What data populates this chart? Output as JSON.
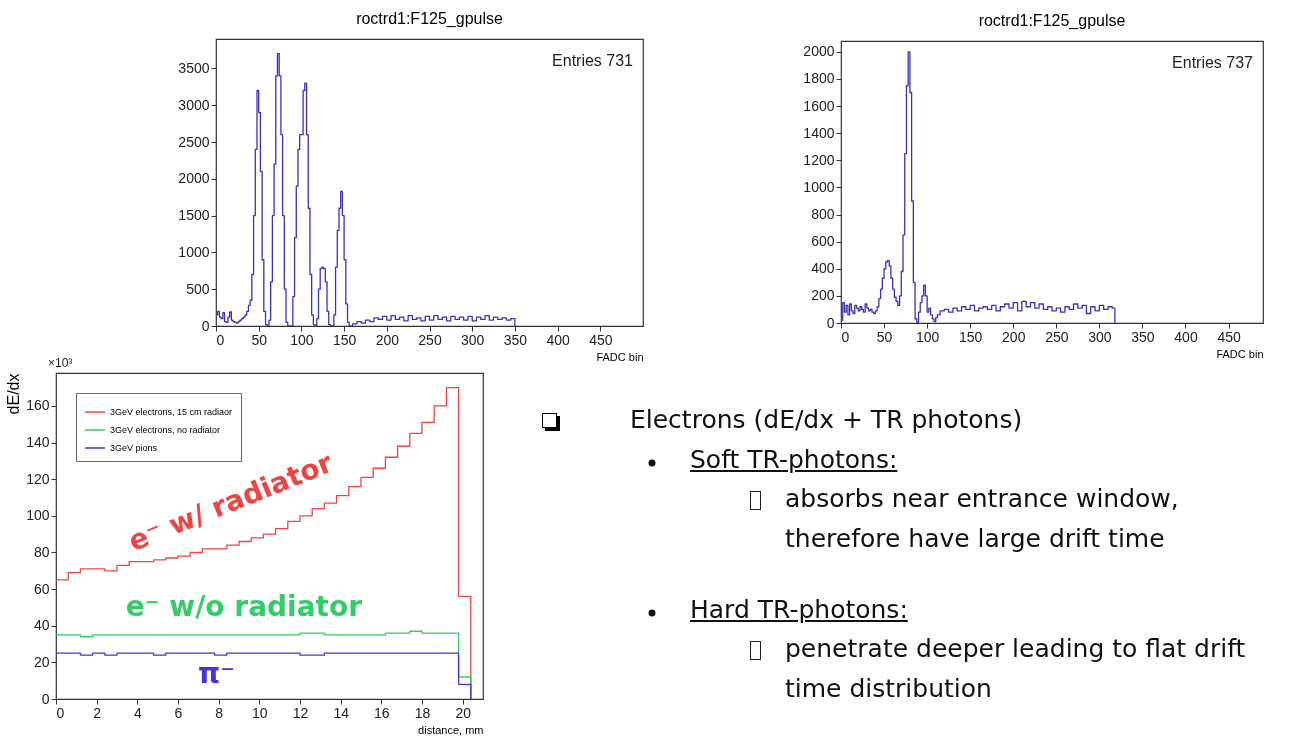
{
  "chart_data": [
    {
      "type": "step",
      "title": "roctrd1:F125_gpulse",
      "xlabel": "FADC bin",
      "annotations": [
        "Entries   731"
      ],
      "xlim": [
        0,
        500
      ],
      "ylim": [
        0,
        3900
      ],
      "xticks": [
        0,
        50,
        100,
        150,
        200,
        250,
        300,
        350,
        400,
        450
      ],
      "yticks": [
        0,
        500,
        1000,
        1500,
        2000,
        2500,
        3000,
        3500
      ],
      "x": [
        0,
        2,
        4,
        6,
        8,
        10,
        12,
        14,
        16,
        18,
        20,
        22,
        24,
        26,
        28,
        30,
        32,
        34,
        36,
        38,
        40,
        42,
        44,
        46,
        48,
        50,
        52,
        54,
        56,
        58,
        60,
        62,
        64,
        66,
        68,
        70,
        72,
        74,
        76,
        78,
        80,
        82,
        84,
        86,
        88,
        90,
        92,
        94,
        96,
        98,
        100,
        102,
        104,
        106,
        108,
        110,
        112,
        114,
        116,
        118,
        120,
        122,
        124,
        126,
        128,
        130,
        132,
        134,
        136,
        138,
        140,
        142,
        144,
        146,
        148,
        150,
        152,
        154,
        156,
        160,
        165,
        170,
        175,
        180,
        185,
        190,
        195,
        200,
        205,
        210,
        215,
        220,
        225,
        230,
        235,
        240,
        245,
        250,
        255,
        260,
        265,
        270,
        275,
        280,
        285,
        290,
        295,
        300,
        305,
        310,
        315,
        320,
        325,
        330,
        335,
        340,
        345,
        350
      ],
      "series": [
        {
          "color": "#3a33b8",
          "values": [
            150,
            200,
            120,
            100,
            180,
            60,
            50,
            120,
            190,
            80,
            60,
            50,
            40,
            60,
            80,
            100,
            120,
            150,
            200,
            280,
            350,
            700,
            1500,
            2400,
            3200,
            2900,
            2100,
            900,
            200,
            20,
            0,
            80,
            600,
            1500,
            2200,
            3400,
            3700,
            3400,
            2600,
            1500,
            500,
            50,
            0,
            0,
            0,
            400,
            1200,
            1900,
            2400,
            2600,
            2600,
            3200,
            3300,
            2600,
            1600,
            700,
            150,
            20,
            0,
            100,
            500,
            780,
            800,
            780,
            600,
            200,
            20,
            0,
            0,
            150,
            800,
            1300,
            1600,
            1830,
            1500,
            900,
            300,
            50,
            0,
            30,
            60,
            40,
            80,
            60,
            110,
            90,
            130,
            80,
            140,
            90,
            120,
            70,
            140,
            90,
            110,
            70,
            130,
            80,
            140,
            90,
            120,
            70,
            130,
            90,
            120,
            80,
            130,
            70,
            120,
            90,
            140,
            80,
            120,
            90,
            110,
            80,
            100,
            0
          ]
        }
      ]
    },
    {
      "type": "step",
      "title": "roctrd1:F125_gpulse",
      "xlabel": "FADC bin",
      "annotations": [
        "Entries   737"
      ],
      "xlim": [
        0,
        490
      ],
      "ylim": [
        0,
        2080
      ],
      "xticks": [
        0,
        50,
        100,
        150,
        200,
        250,
        300,
        350,
        400,
        450
      ],
      "yticks": [
        0,
        200,
        400,
        600,
        800,
        1000,
        1200,
        1400,
        1600,
        1800,
        2000
      ],
      "x": [
        0,
        2,
        4,
        6,
        8,
        10,
        12,
        14,
        16,
        18,
        20,
        22,
        24,
        26,
        28,
        30,
        32,
        34,
        36,
        38,
        40,
        42,
        44,
        46,
        48,
        50,
        52,
        54,
        56,
        58,
        60,
        62,
        64,
        66,
        68,
        70,
        72,
        74,
        76,
        78,
        80,
        82,
        84,
        86,
        88,
        90,
        92,
        94,
        96,
        98,
        100,
        102,
        104,
        106,
        108,
        110,
        112,
        115,
        120,
        125,
        130,
        135,
        140,
        145,
        150,
        155,
        160,
        165,
        170,
        175,
        180,
        185,
        190,
        195,
        200,
        205,
        210,
        215,
        220,
        225,
        230,
        235,
        240,
        245,
        250,
        255,
        260,
        265,
        270,
        275,
        280,
        285,
        290,
        295,
        300,
        305,
        310,
        315,
        318
      ],
      "series": [
        {
          "color": "#3a33b8",
          "values": [
            20,
            150,
            80,
            130,
            60,
            140,
            90,
            70,
            130,
            110,
            90,
            120,
            100,
            80,
            140,
            110,
            90,
            100,
            80,
            70,
            90,
            120,
            180,
            250,
            330,
            400,
            450,
            460,
            420,
            330,
            250,
            190,
            160,
            130,
            200,
            380,
            650,
            1250,
            1750,
            2000,
            1700,
            900,
            300,
            30,
            0,
            80,
            150,
            200,
            280,
            200,
            80,
            110,
            60,
            30,
            10,
            40,
            60,
            90,
            100,
            80,
            110,
            90,
            120,
            100,
            130,
            90,
            110,
            120,
            100,
            130,
            90,
            120,
            140,
            110,
            150,
            90,
            160,
            120,
            150,
            110,
            140,
            100,
            120,
            90,
            110,
            80,
            120,
            100,
            140,
            110,
            130,
            70,
            120,
            90,
            130,
            100,
            120,
            110,
            0
          ]
        }
      ]
    },
    {
      "type": "step",
      "xlabel": "distance, mm",
      "ylabel": "dE/dx",
      "legend": "top left",
      "annotations": [
        "×10³",
        "e⁻ w/ radiator",
        "e⁻ w/o radiator",
        "π⁻"
      ],
      "xlim": [
        0,
        21
      ],
      "ylim": [
        0,
        178
      ],
      "xticks": [
        0,
        2,
        4,
        6,
        8,
        10,
        12,
        14,
        16,
        18,
        20
      ],
      "yticks": [
        0,
        20,
        40,
        60,
        80,
        100,
        120,
        140,
        160
      ],
      "x": [
        0,
        0.6,
        1.2,
        1.8,
        2.4,
        3,
        3.6,
        4.2,
        4.8,
        5.4,
        6,
        6.6,
        7.2,
        7.8,
        8.4,
        9,
        9.6,
        10.2,
        10.8,
        11.4,
        12,
        12.6,
        13.2,
        13.8,
        14.4,
        15,
        15.6,
        16.2,
        16.8,
        17.4,
        18,
        18.6,
        19.2,
        19.8,
        20.4
      ],
      "series": [
        {
          "name": "3GeV electrons, 15 cm radiaor",
          "color": "#ee4444",
          "values": [
            65,
            69,
            71,
            71,
            70,
            73,
            75,
            75,
            76,
            77,
            78,
            80,
            82,
            82,
            84,
            86,
            88,
            90,
            93,
            97,
            100,
            104,
            107,
            111,
            116,
            121,
            126,
            132,
            138,
            145,
            151,
            160,
            170,
            56,
            0
          ]
        },
        {
          "name": "3GeV electrons, no radiator",
          "color": "#33cc66",
          "values": [
            35,
            35,
            34,
            35,
            35,
            35,
            35,
            35,
            35,
            35,
            35,
            35,
            35,
            35,
            35,
            35,
            35,
            35,
            35,
            35,
            36,
            36,
            35,
            35,
            35,
            35,
            35,
            36,
            36,
            37,
            36,
            36,
            36,
            12,
            0
          ]
        },
        {
          "name": "3GeV pions",
          "color": "#4433dd",
          "values": [
            25,
            25,
            24,
            25,
            24,
            25,
            25,
            25,
            24,
            25,
            25,
            25,
            25,
            24,
            25,
            25,
            25,
            25,
            25,
            25,
            24,
            24,
            25,
            25,
            25,
            25,
            25,
            25,
            25,
            25,
            25,
            25,
            25,
            8,
            0
          ]
        }
      ]
    },
    {
      "type": "other",
      "annotations": [
        "Electrons (dE/dx + TR photons)",
        "Soft TR-photons:",
        "absorbs near entrance window, therefore  have large drift time",
        "Hard TR-photons:",
        "penetrate deeper leading to flat drift time distribution"
      ]
    }
  ]
}
